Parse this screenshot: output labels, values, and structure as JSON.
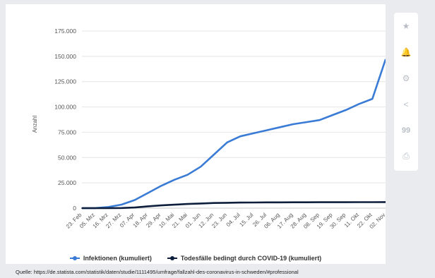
{
  "chart_data": {
    "type": "line",
    "ylabel": "Anzahl",
    "ylim": [
      0,
      175000
    ],
    "yticks": [
      "0",
      "25.000",
      "50.000",
      "75.000",
      "100.000",
      "125.000",
      "150.000",
      "175.000"
    ],
    "categories": [
      "23. Feb",
      "05. Mrz",
      "16. Mrz",
      "27. Mrz",
      "07. Apr",
      "18. Apr",
      "29. Apr",
      "10. Mai",
      "21. Mai",
      "01. Jun",
      "12. Jun",
      "23. Jun",
      "04. Jul",
      "15. Jul",
      "26. Jul",
      "06. Aug",
      "17. Aug",
      "28. Aug",
      "08. Sep",
      "19. Sep",
      "30. Sep",
      "11. Okt",
      "22. Okt",
      "02. Nov"
    ],
    "grid": "horizontal",
    "legend_position": "bottom",
    "series": [
      {
        "name": "Infektionen (kumuliert)",
        "color": "#3a7bd5",
        "values": [
          0,
          100,
          1100,
          3500,
          8000,
          15000,
          22000,
          28000,
          33000,
          41000,
          53000,
          65000,
          71000,
          74000,
          77000,
          80000,
          83000,
          85000,
          87000,
          92000,
          97000,
          103000,
          108000,
          147000
        ]
      },
      {
        "name": "Todesfälle bedingt durch COVID-19 (kumuliert)",
        "color": "#0d1f3c",
        "values": [
          0,
          0,
          10,
          110,
          600,
          1800,
          2700,
          3400,
          4100,
          4600,
          5100,
          5300,
          5500,
          5600,
          5700,
          5750,
          5800,
          5820,
          5840,
          5860,
          5880,
          5900,
          5930,
          6020
        ]
      }
    ]
  },
  "sidebar": {
    "buttons": [
      "star-icon",
      "bell-icon",
      "gear-icon",
      "share-icon",
      "quote-icon",
      "print-icon"
    ],
    "glyphs": [
      "★",
      "🔔",
      "⚙",
      "<",
      "99",
      "⎙"
    ]
  },
  "source": "Quelle: https://de.statista.com/statistik/daten/studie/1111495/umfrage/fallzahl-des-coronavirus-in-schweden/#professional"
}
